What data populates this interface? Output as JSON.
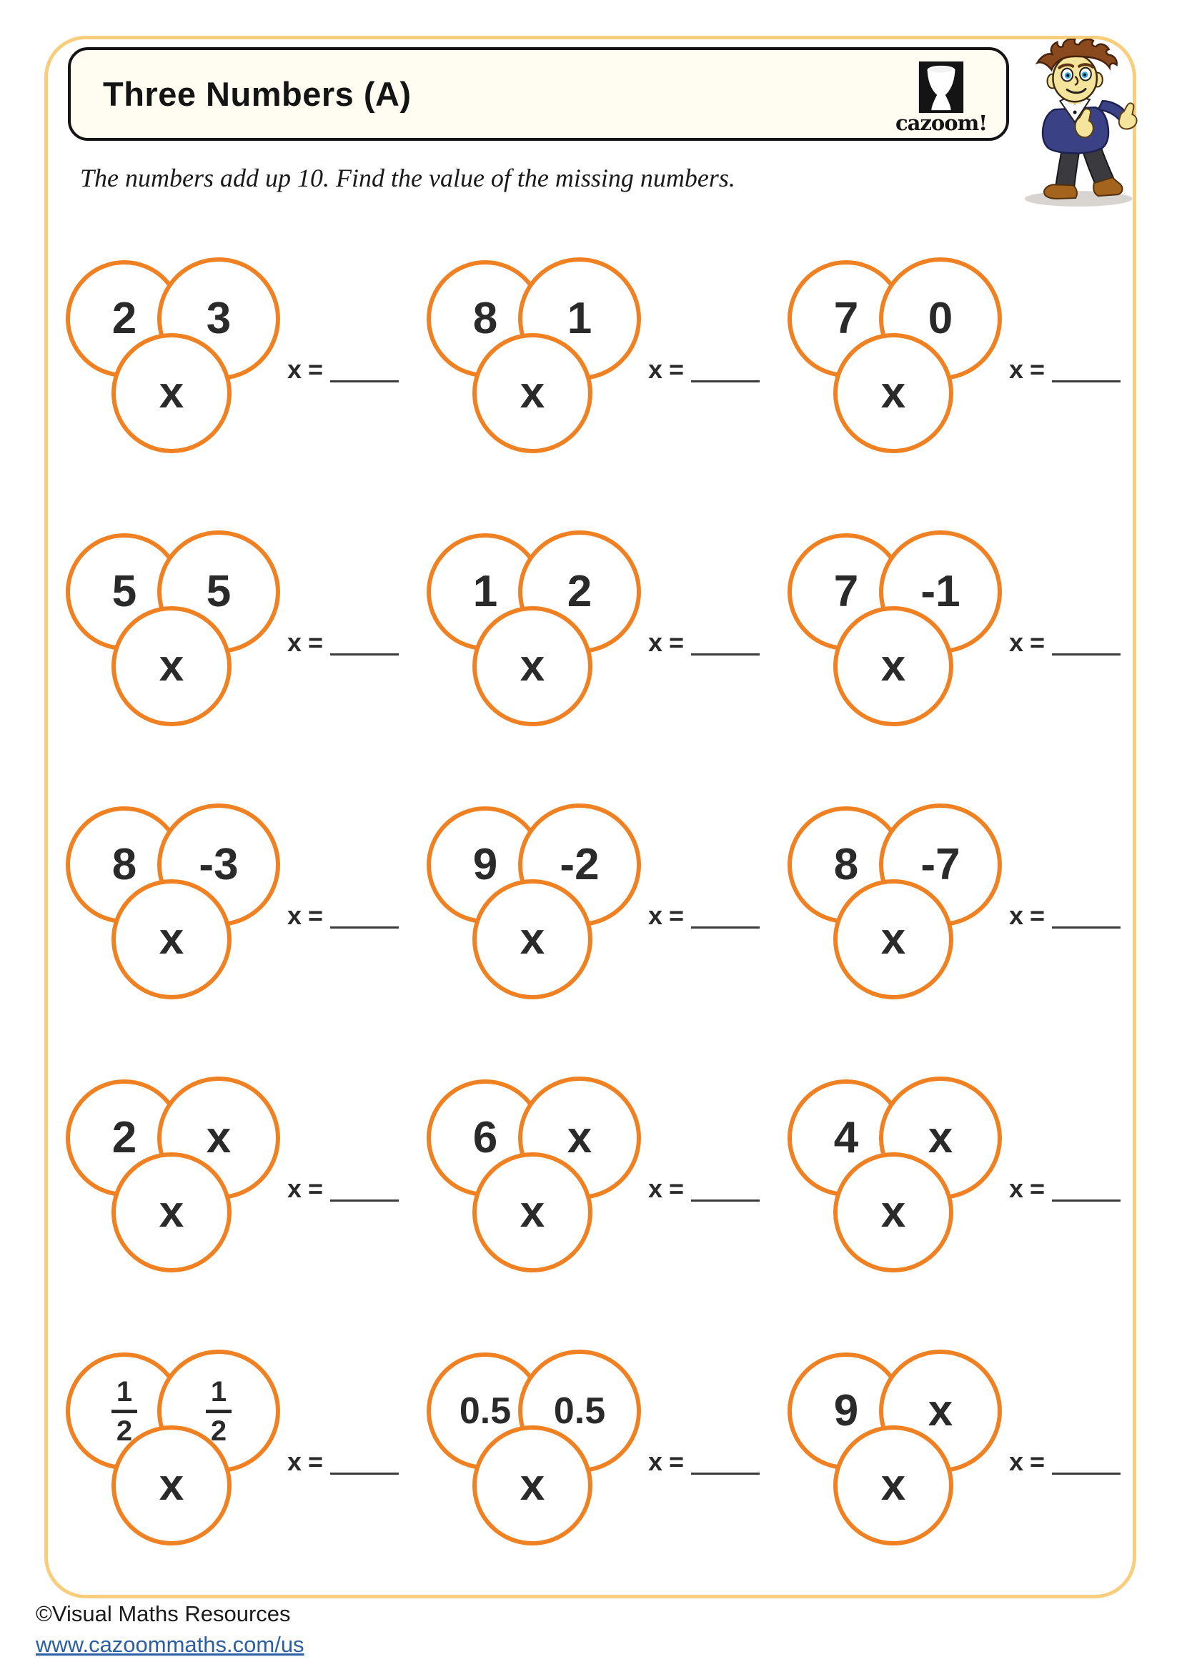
{
  "worksheet": {
    "title": "Three Numbers (A)",
    "instruction": "The numbers add up 10. Find the value of the missing numbers.",
    "answer_prefix": "x",
    "answer_equals": "=",
    "answer_blank": "",
    "problems": [
      {
        "top_left": "2",
        "top_right": "3",
        "bottom": "x"
      },
      {
        "top_left": "8",
        "top_right": "1",
        "bottom": "x"
      },
      {
        "top_left": "7",
        "top_right": "0",
        "bottom": "x"
      },
      {
        "top_left": "5",
        "top_right": "5",
        "bottom": "x"
      },
      {
        "top_left": "1",
        "top_right": "2",
        "bottom": "x"
      },
      {
        "top_left": "7",
        "top_right": "-1",
        "bottom": "x"
      },
      {
        "top_left": "8",
        "top_right": "-3",
        "bottom": "x"
      },
      {
        "top_left": "9",
        "top_right": "-2",
        "bottom": "x"
      },
      {
        "top_left": "8",
        "top_right": "-7",
        "bottom": "x"
      },
      {
        "top_left": "2",
        "top_right": "x",
        "bottom": "x"
      },
      {
        "top_left": "6",
        "top_right": "x",
        "bottom": "x"
      },
      {
        "top_left": "4",
        "top_right": "x",
        "bottom": "x"
      },
      {
        "top_left": "1/2",
        "top_right": "1/2",
        "bottom": "x"
      },
      {
        "top_left": "0.5",
        "top_right": "0.5",
        "bottom": "x"
      },
      {
        "top_left": "9",
        "top_right": "x",
        "bottom": "x"
      }
    ]
  },
  "logo": {
    "brand": "cazoom!",
    "icon": "goblet-icon"
  },
  "mascot": {
    "icon": "boy-thumbs-up-mascot"
  },
  "footer": {
    "copyright": "©Visual Maths Resources",
    "link": "www.cazoommaths.com/us"
  },
  "colors": {
    "circle_orange": "#F08122",
    "page_border": "#F8CE7D",
    "title_box_bg": "#FFFDF2",
    "link_blue": "#2B5FA3"
  }
}
